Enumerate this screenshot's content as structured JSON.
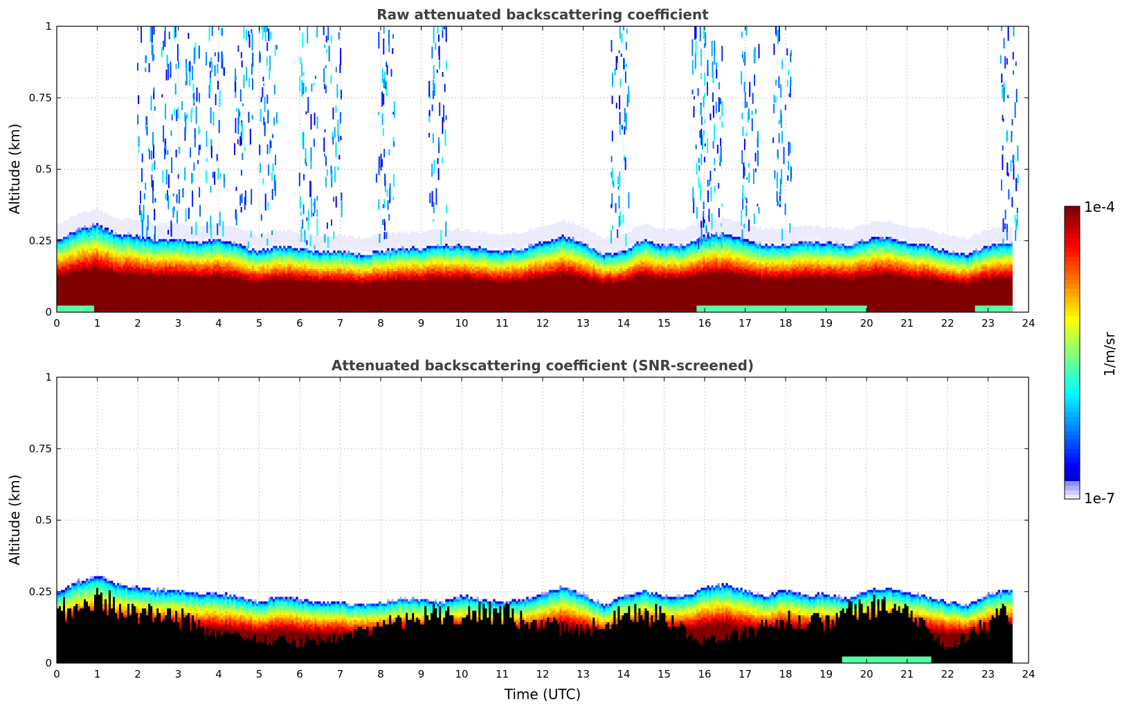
{
  "figure": {
    "colorbar": {
      "max_label": "1e-4",
      "min_label": "1e-7",
      "unit_label": "1/m/sr",
      "colormap": "jet-log"
    },
    "shared_xlabel": "Time (UTC)"
  },
  "chart_data": [
    {
      "type": "heatmap",
      "title": "Raw attenuated backscattering coefficient",
      "xlabel": "",
      "ylabel": "Altitude (km)",
      "xlim": [
        0,
        24
      ],
      "ylim": [
        0,
        1
      ],
      "xticks": [
        "0",
        "1",
        "2",
        "3",
        "4",
        "5",
        "6",
        "7",
        "8",
        "9",
        "10",
        "11",
        "12",
        "13",
        "14",
        "15",
        "16",
        "17",
        "18",
        "19",
        "20",
        "21",
        "22",
        "23",
        "24"
      ],
      "yticks": [
        "0",
        "0.25",
        "0.5",
        "0.75",
        "1"
      ],
      "grid": true,
      "layer_top_km": [
        [
          0,
          0.24
        ],
        [
          0.5,
          0.27
        ],
        [
          1,
          0.29
        ],
        [
          1.5,
          0.26
        ],
        [
          2,
          0.25
        ],
        [
          2.5,
          0.24
        ],
        [
          3,
          0.24
        ],
        [
          3.5,
          0.23
        ],
        [
          4,
          0.24
        ],
        [
          4.5,
          0.22
        ],
        [
          5,
          0.2
        ],
        [
          5.5,
          0.22
        ],
        [
          6,
          0.21
        ],
        [
          6.5,
          0.2
        ],
        [
          7,
          0.2
        ],
        [
          7.5,
          0.19
        ],
        [
          8,
          0.2
        ],
        [
          8.5,
          0.21
        ],
        [
          9,
          0.21
        ],
        [
          9.5,
          0.22
        ],
        [
          10,
          0.22
        ],
        [
          10.5,
          0.21
        ],
        [
          11,
          0.2
        ],
        [
          11.5,
          0.21
        ],
        [
          12,
          0.23
        ],
        [
          12.5,
          0.25
        ],
        [
          13,
          0.23
        ],
        [
          13.5,
          0.19
        ],
        [
          14,
          0.2
        ],
        [
          14.5,
          0.24
        ],
        [
          15,
          0.22
        ],
        [
          15.5,
          0.22
        ],
        [
          16,
          0.25
        ],
        [
          16.5,
          0.26
        ],
        [
          17,
          0.24
        ],
        [
          17.5,
          0.22
        ],
        [
          18,
          0.22
        ],
        [
          18.5,
          0.23
        ],
        [
          19,
          0.23
        ],
        [
          19.5,
          0.22
        ],
        [
          20,
          0.24
        ],
        [
          20.5,
          0.25
        ],
        [
          21,
          0.23
        ],
        [
          21.5,
          0.22
        ],
        [
          22,
          0.2
        ],
        [
          22.5,
          0.19
        ],
        [
          23,
          0.22
        ],
        [
          23.6,
          0.23
        ]
      ],
      "data_end_hour": 23.6,
      "value_range_log10": [
        -7,
        -4
      ],
      "cloud_hours": [
        2.2,
        2.8,
        3.3,
        3.9,
        4.6,
        5.2,
        6.2,
        6.8,
        8.1,
        9.4,
        13.9,
        15.9,
        16.2,
        17.1,
        17.9,
        23.5
      ]
    },
    {
      "type": "heatmap",
      "title": "Attenuated backscattering coefficient (SNR-screened)",
      "xlabel": "Time (UTC)",
      "ylabel": "Altitude (km)",
      "xlim": [
        0,
        24
      ],
      "ylim": [
        0,
        1
      ],
      "xticks": [
        "0",
        "1",
        "2",
        "3",
        "4",
        "5",
        "6",
        "7",
        "8",
        "9",
        "10",
        "11",
        "12",
        "13",
        "14",
        "15",
        "16",
        "17",
        "18",
        "19",
        "20",
        "21",
        "22",
        "23",
        "24"
      ],
      "yticks": [
        "0",
        "0.25",
        "0.5",
        "0.75",
        "1"
      ],
      "grid": true,
      "layer_top_km": [
        [
          0,
          0.23
        ],
        [
          0.5,
          0.27
        ],
        [
          1,
          0.29
        ],
        [
          1.5,
          0.26
        ],
        [
          2,
          0.25
        ],
        [
          2.5,
          0.24
        ],
        [
          3,
          0.24
        ],
        [
          3.5,
          0.23
        ],
        [
          4,
          0.23
        ],
        [
          4.5,
          0.22
        ],
        [
          5,
          0.2
        ],
        [
          5.5,
          0.22
        ],
        [
          6,
          0.21
        ],
        [
          6.5,
          0.2
        ],
        [
          7,
          0.2
        ],
        [
          7.5,
          0.19
        ],
        [
          8,
          0.2
        ],
        [
          8.5,
          0.21
        ],
        [
          9,
          0.21
        ],
        [
          9.5,
          0.2
        ],
        [
          10,
          0.22
        ],
        [
          10.5,
          0.21
        ],
        [
          11,
          0.2
        ],
        [
          11.5,
          0.21
        ],
        [
          12,
          0.23
        ],
        [
          12.5,
          0.25
        ],
        [
          13,
          0.23
        ],
        [
          13.5,
          0.19
        ],
        [
          14,
          0.22
        ],
        [
          14.5,
          0.24
        ],
        [
          15,
          0.22
        ],
        [
          15.5,
          0.22
        ],
        [
          16,
          0.25
        ],
        [
          16.5,
          0.26
        ],
        [
          17,
          0.24
        ],
        [
          17.5,
          0.22
        ],
        [
          18,
          0.24
        ],
        [
          18.5,
          0.22
        ],
        [
          19,
          0.23
        ],
        [
          19.5,
          0.21
        ],
        [
          20,
          0.24
        ],
        [
          20.5,
          0.25
        ],
        [
          21,
          0.23
        ],
        [
          21.5,
          0.22
        ],
        [
          22,
          0.2
        ],
        [
          22.5,
          0.19
        ],
        [
          23,
          0.23
        ],
        [
          23.6,
          0.24
        ]
      ],
      "data_end_hour": 23.6,
      "value_range_log10": [
        -7,
        -4
      ],
      "screened_black_top_km": [
        [
          0,
          0.18
        ],
        [
          1,
          0.22
        ],
        [
          2,
          0.17
        ],
        [
          3,
          0.16
        ],
        [
          4,
          0.1
        ],
        [
          5,
          0.08
        ],
        [
          6,
          0.07
        ],
        [
          7,
          0.08
        ],
        [
          8,
          0.12
        ],
        [
          9,
          0.17
        ],
        [
          10,
          0.17
        ],
        [
          11,
          0.17
        ],
        [
          12,
          0.13
        ],
        [
          13,
          0.11
        ],
        [
          14,
          0.17
        ],
        [
          15,
          0.16
        ],
        [
          16,
          0.07
        ],
        [
          17,
          0.1
        ],
        [
          18,
          0.15
        ],
        [
          19,
          0.14
        ],
        [
          20,
          0.2
        ],
        [
          21,
          0.18
        ],
        [
          22,
          0.05
        ],
        [
          23,
          0.14
        ],
        [
          23.6,
          0.18
        ]
      ]
    }
  ]
}
